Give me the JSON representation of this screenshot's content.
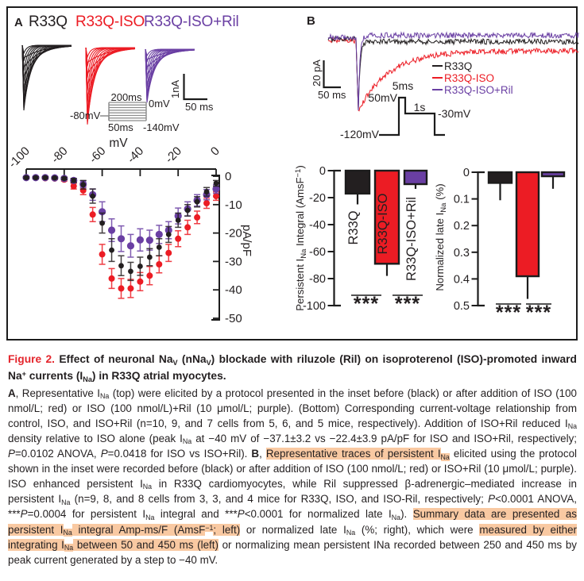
{
  "colors": {
    "black": "#231f20",
    "red": "#ec1c24",
    "purple": "#6a3fa3",
    "highlight": "#f9c9a2",
    "frame": "#1c1c1c",
    "inset_gray": "#8a8a8a",
    "caption_red": "#e4252c"
  },
  "figure": {
    "panelA": {
      "label": "A",
      "series_labels": [
        {
          "text": "R33Q",
          "color": "#231f20"
        },
        {
          "text": "R33Q-ISO",
          "color": "#ec1c24"
        },
        {
          "text": "R33Q-ISO+Ril",
          "color": "#6a3fa3"
        }
      ],
      "scalebar": {
        "v": "1nA",
        "h": "50 ms"
      },
      "inset": {
        "top": "200ms",
        "right_top": "0mV",
        "left": "-80mV",
        "bottom_left": "50ms",
        "bottom_right": "-140mV"
      }
    },
    "panelB": {
      "label": "B",
      "legend": [
        {
          "text": "R33Q",
          "color": "#231f20"
        },
        {
          "text": "R33Q-ISO",
          "color": "#ec1c24"
        },
        {
          "text": "R33Q-ISO+Ril",
          "color": "#6a3fa3"
        }
      ],
      "scalebar": {
        "v": "20 pA",
        "h": "50 ms"
      },
      "protocol": {
        "pulse_mv": "50mV",
        "pulse_ms": "5ms",
        "plateau": "1s",
        "late": "-30mV",
        "holding": "-120mV"
      }
    }
  },
  "chart_data": [
    {
      "id": "iv-curve",
      "type": "scatter",
      "title": "",
      "xlabel": "mV",
      "ylabel": "pA/pF",
      "xlim": [
        -100,
        0
      ],
      "ylim": [
        -50,
        0
      ],
      "xticks": [
        -100,
        -80,
        -60,
        -40,
        -20,
        0
      ],
      "xtick_labels": [
        "-100",
        "-80",
        "-60",
        "-40",
        "-20",
        "0"
      ],
      "yticks": [
        0,
        -10,
        -20,
        -30,
        -40,
        -50
      ],
      "ytick_labels": [
        "0",
        "-10",
        "-20",
        "-30",
        "-40",
        "-50"
      ],
      "x": [
        -100,
        -95,
        -90,
        -85,
        -80,
        -75,
        -70,
        -65,
        -60,
        -55,
        -50,
        -45,
        -40,
        -35,
        -30,
        -25,
        -20,
        -15,
        -10,
        -5,
        0
      ],
      "series": [
        {
          "name": "R33Q",
          "color": "#231f20",
          "values": [
            -0.5,
            -0.5,
            -0.5,
            -0.6,
            -0.8,
            -1.5,
            -3,
            -7,
            -16.5,
            -26,
            -31.5,
            -33.5,
            -31.7,
            -28.5,
            -25,
            -20.5,
            -15.5,
            -12,
            -9,
            -5.5,
            -2.5
          ],
          "errors": [
            0.3,
            0.3,
            0.3,
            0.3,
            0.4,
            0.7,
            1.5,
            2.5,
            3.5,
            4,
            3.5,
            3.2,
            3.2,
            3,
            3,
            2.8,
            2.5,
            2,
            1.8,
            1.5,
            1
          ]
        },
        {
          "name": "R33Q-ISO",
          "color": "#ec1c24",
          "values": [
            -0.6,
            -0.6,
            -0.7,
            -0.8,
            -1.2,
            -3.5,
            -5,
            -13.5,
            -27.5,
            -36,
            -39.5,
            -39.5,
            -37.1,
            -35,
            -31,
            -27,
            -22,
            -18,
            -14.5,
            -9.5,
            -7
          ],
          "errors": [
            0.3,
            0.3,
            0.3,
            0.4,
            0.5,
            1,
            1.5,
            2.5,
            3.5,
            3.5,
            3.5,
            3.2,
            3.2,
            3.2,
            3,
            3,
            2.8,
            2.5,
            2.2,
            1.8,
            1.5
          ]
        },
        {
          "name": "R33Q-ISO+Ril",
          "color": "#6a3fa3",
          "values": [
            -0.5,
            -0.5,
            -0.5,
            -0.6,
            -0.8,
            -1.5,
            -2.8,
            -6.5,
            -12.5,
            -19,
            -22,
            -24.5,
            -22.4,
            -22.5,
            -20.5,
            -19,
            -14,
            -11.5,
            -8.5,
            -6.5,
            -4.5
          ],
          "errors": [
            0.3,
            0.3,
            0.3,
            0.3,
            0.4,
            0.7,
            1.2,
            2,
            3.5,
            4,
            4.5,
            4,
            3.9,
            3.5,
            3.2,
            3,
            2.8,
            2.5,
            2,
            1.8,
            1.5
          ]
        }
      ]
    },
    {
      "id": "persistent-integral",
      "type": "bar",
      "ylabel": "Persistent INa Integral (AmsF−1)",
      "ylabel_parts": [
        {
          "t": "Persistent I"
        },
        {
          "t": "Na",
          "sub": 1
        },
        {
          "t": " Integral (AmsF"
        },
        {
          "t": "−1",
          "sup": 1
        },
        {
          "t": ")"
        }
      ],
      "categories": [
        "R33Q",
        "R33Q-ISO",
        "R33Q-ISO+Ril"
      ],
      "values": [
        -17,
        -69,
        -10
      ],
      "errors": [
        8,
        9,
        3.5
      ],
      "bar_colors": [
        "#231f20",
        "#ec1c24",
        "#6a3fa3"
      ],
      "label_colors": [
        "#231f20",
        "#ffffff",
        "#6a3fa3"
      ],
      "ylim": [
        -100,
        0
      ],
      "yticks": [
        0,
        -20,
        -40,
        -60,
        -80,
        -100
      ],
      "ytick_labels": [
        "0",
        "-20",
        "-40",
        "-60",
        "-80",
        "-100"
      ],
      "significance": [
        "***",
        "***"
      ]
    },
    {
      "id": "normalized-late",
      "type": "bar",
      "ylabel": "Normalized late INa (%)",
      "ylabel_parts": [
        {
          "t": "Normalized late I"
        },
        {
          "t": "Na",
          "sub": 1
        },
        {
          "t": " (%)"
        }
      ],
      "categories": [
        "R33Q",
        "R33Q-ISO",
        "R33Q-ISO+Ril"
      ],
      "values": [
        0.04,
        0.39,
        0.015
      ],
      "errors": [
        0.065,
        0.085,
        0.047
      ],
      "bar_colors": [
        "#231f20",
        "#ec1c24",
        "#6a3fa3"
      ],
      "ylim": [
        0,
        0.5
      ],
      "yticks": [
        0,
        0.1,
        0.2,
        0.3,
        0.4,
        0.5
      ],
      "ytick_labels": [
        "0",
        "0.1",
        "0.2",
        "0.3",
        "0.4",
        "0.5"
      ],
      "significance": [
        "***",
        "***"
      ]
    }
  ],
  "caption": {
    "title_segments": [
      {
        "t": "Figure 2.  ",
        "red": 1
      },
      {
        "t": "Effect of neuronal Na"
      },
      {
        "t": "V",
        "sub": 1
      },
      {
        "t": " (nNa"
      },
      {
        "t": "V",
        "sub": 1
      },
      {
        "t": ") blockade with riluzole (Ril) on isoproterenol (ISO)-promoted inward Na"
      },
      {
        "t": "+",
        "sup": 1
      },
      {
        "t": " currents (I"
      },
      {
        "t": "Na",
        "sub": 1
      },
      {
        "t": ") in R33Q atrial myocytes."
      }
    ],
    "body_segments": [
      {
        "t": "A",
        "b": 1
      },
      {
        "t": ", Representative I"
      },
      {
        "t": "Na",
        "sub": 1
      },
      {
        "t": " (top) were elicited by a protocol presented in the inset before (black) or after addition of ISO (100 nmol/L; red) or ISO (100 nmol/L)+Ril (10 μmol/L; purple). (Bottom) Corresponding current-voltage relationship from control, ISO, and ISO+Ril (n=10, 9, and 7 cells from 5, 6, and 5 mice, respectively). Addition of ISO+Ril reduced I"
      },
      {
        "t": "Na",
        "sub": 1
      },
      {
        "t": " density relative to ISO alone (peak I"
      },
      {
        "t": "Na",
        "sub": 1
      },
      {
        "t": " at −40 mV of −37.1±3.2 vs −22.4±3.9 pA/pF for ISO and ISO+Ril, respectively; "
      },
      {
        "t": "P",
        "i": 1
      },
      {
        "t": "=0.0102 ANOVA, "
      },
      {
        "t": "P",
        "i": 1
      },
      {
        "t": "=0.0418 for ISO vs ISO+Ril). "
      },
      {
        "t": "B",
        "b": 1
      },
      {
        "t": ", "
      },
      {
        "t": "Representative traces of persistent I",
        "hl": 1
      },
      {
        "t": "Na",
        "sub": 1,
        "hl": 1
      },
      {
        "t": " elicited using the protocol shown in the inset were recorded before (black) or after addition of ISO (100 nmol/L; red) or ISO+Ril (10 μmol/L; purple). ISO enhanced persistent I"
      },
      {
        "t": "Na",
        "sub": 1
      },
      {
        "t": " in R33Q cardiomyocytes, while Ril suppressed β-adrenergic–mediated increase in persistent I"
      },
      {
        "t": "Na",
        "sub": 1
      },
      {
        "t": " (n=9, 8, and 8 cells from 3, 3, and 4 mice for R33Q, ISO, and ISO-Ril, respectively; "
      },
      {
        "t": "P",
        "i": 1
      },
      {
        "t": "<0.0001 ANOVA, ***"
      },
      {
        "t": "P",
        "i": 1
      },
      {
        "t": "=0.0004 for persistent I"
      },
      {
        "t": "Na",
        "sub": 1
      },
      {
        "t": " integral and ***"
      },
      {
        "t": "P",
        "i": 1
      },
      {
        "t": "<0.0001 for normalized late I"
      },
      {
        "t": "Na",
        "sub": 1
      },
      {
        "t": "). "
      },
      {
        "t": "Summary data are presented as persistent I",
        "hl": 1
      },
      {
        "t": "Na",
        "sub": 1,
        "hl": 1
      },
      {
        "t": " integral Amp-ms/F (AmsF",
        "hl": 1
      },
      {
        "t": "−1",
        "sup": 1,
        "hl": 1
      },
      {
        "t": "; left)",
        "hl": 1
      },
      {
        "t": " or normalized late I"
      },
      {
        "t": "Na",
        "sub": 1
      },
      {
        "t": " (%; right), which were "
      },
      {
        "t": "measured by either integrating I",
        "hl": 1
      },
      {
        "t": "Na",
        "sub": 1,
        "hl": 1
      },
      {
        "t": " between 50 and 450 ms (left)",
        "hl": 1
      },
      {
        "t": " or normalizing mean persistent INa recorded between 250 and 450 ms by peak current generated by a step to −40 mV."
      }
    ]
  }
}
